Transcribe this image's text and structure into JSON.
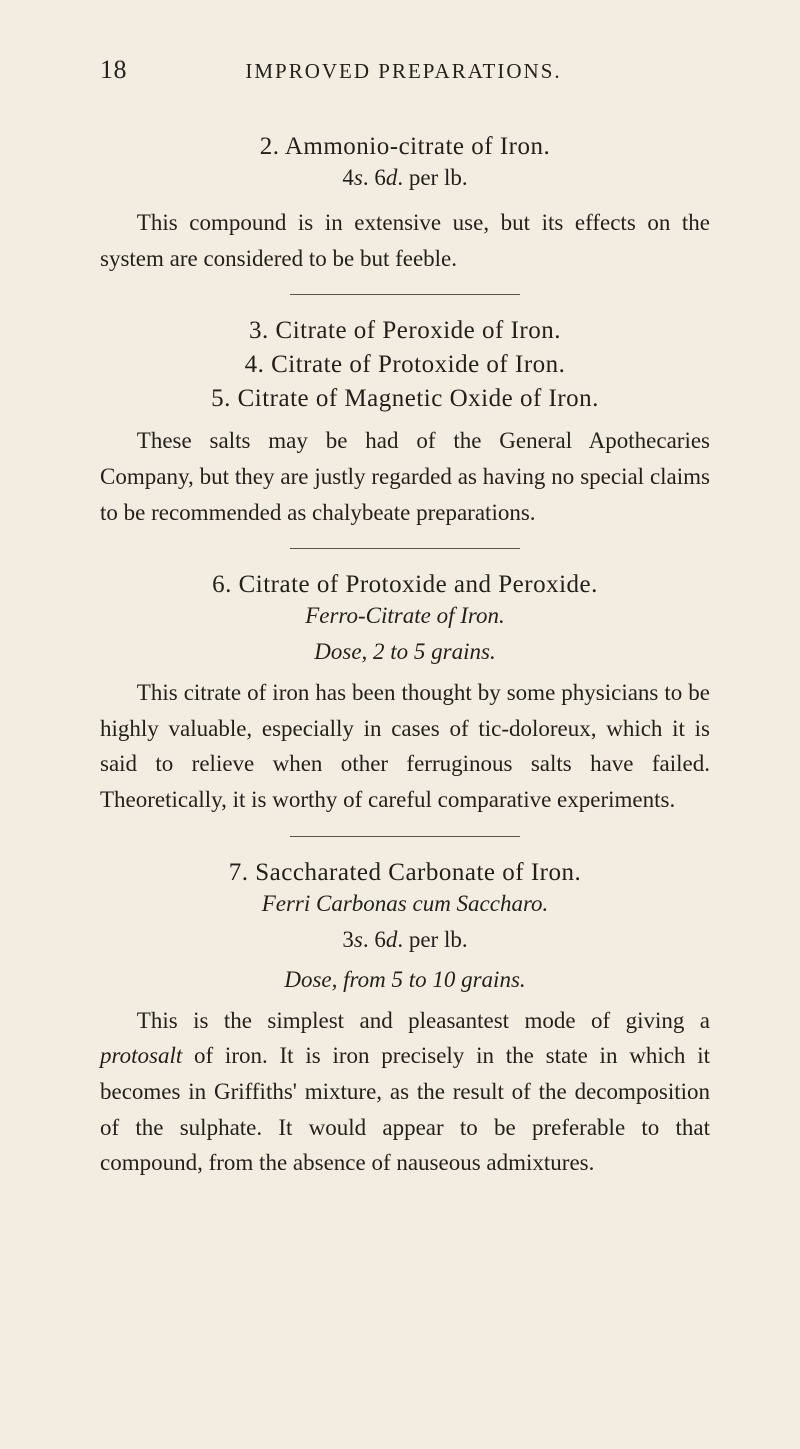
{
  "header": {
    "page_number": "18",
    "running_title": "IMPROVED PREPARATIONS."
  },
  "sections": [
    {
      "title": "2. Ammonio-citrate of Iron.",
      "subline_prefix": "4",
      "subline_s": "s",
      "subline_mid": ". 6",
      "subline_d": "d",
      "subline_suffix": ". per lb.",
      "body": "This compound is in extensive use, but its effects on the system are considered to be but feeble."
    },
    {
      "titles": [
        "3. Citrate of Peroxide of Iron.",
        "4. Citrate of Protoxide of Iron.",
        "5. Citrate of Magnetic Oxide of Iron."
      ],
      "body": "These salts may be had of the General Apothecaries Company, but they are justly regarded as having no special claims to be recommended as chalybeate preparations."
    },
    {
      "title": "6. Citrate of Protoxide and Peroxide.",
      "italic_line": "Ferro-Citrate of Iron.",
      "dose_label": "Dose,",
      "dose_rest": " 2 to 5 grains.",
      "body": "This citrate of iron has been thought by some physicians to be highly valuable, especially in cases of tic-doloreux, which it is said to relieve when other ferruginous salts have failed. Theoretically, it is worthy of careful comparative experiments."
    },
    {
      "title": "7. Saccharated Carbonate of Iron.",
      "italic_line": "Ferri Carbonas cum Saccharo.",
      "subline_prefix": "3",
      "subline_s": "s",
      "subline_mid": ". 6",
      "subline_d": "d",
      "subline_suffix": ". per lb.",
      "dose_label": "Dose, from",
      "dose_rest": " 5 to 10 grains.",
      "body_pre": "This is the simplest and pleasantest mode of giving a ",
      "body_italic": "protosalt",
      "body_post": " of iron. It is iron precisely in the state in which it becomes in Griffiths' mixture, as the result of the decom­position of the sulphate. It would appear to be preferable to that compound, from the absence of nauseous admix­tures."
    }
  ]
}
